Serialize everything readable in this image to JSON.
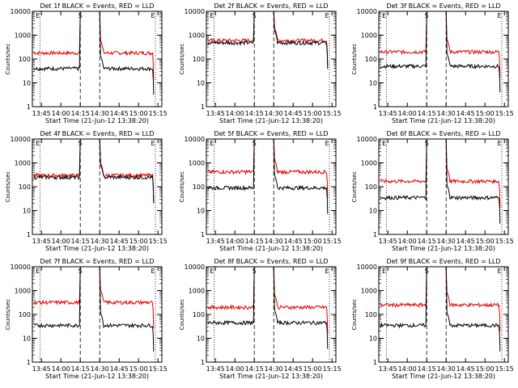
{
  "chart_data": [
    {
      "type": "line",
      "title": "Det 1f BLACK = Events, RED = LLD",
      "xlabel": "Start Time (21-Jun-12 13:38:20)",
      "ylabel": "Counts/sec",
      "black_level": 40,
      "red_level": 180,
      "spike": {
        "start": "14:15",
        "end": "14:30"
      },
      "tail_drop": true
    },
    {
      "type": "line",
      "title": "Det 2f BLACK = Events, RED = LLD",
      "xlabel": "Start Time (21-Jun-12 13:38:20)",
      "ylabel": "Counts/sec",
      "black_level": 480,
      "red_level": 600,
      "spike": {
        "start": "14:15",
        "end": "14:30"
      },
      "tail_drop": true
    },
    {
      "type": "line",
      "title": "Det 3f BLACK = Events, RED = LLD",
      "xlabel": "Start Time (21-Jun-12 13:38:20)",
      "ylabel": "Counts/sec",
      "black_level": 50,
      "red_level": 200,
      "spike": {
        "start": "14:15",
        "end": "14:30"
      },
      "tail_drop": true
    },
    {
      "type": "line",
      "title": "Det 4f BLACK = Events, RED = LLD",
      "xlabel": "Start Time (21-Jun-12 13:38:20)",
      "ylabel": "Counts/sec",
      "black_level": 250,
      "red_level": 300,
      "spike": {
        "start": "14:15",
        "end": "14:30"
      },
      "tail_drop": true
    },
    {
      "type": "line",
      "title": "Det 5f BLACK = Events, RED = LLD",
      "xlabel": "Start Time (21-Jun-12 13:38:20)",
      "ylabel": "Counts/sec",
      "black_level": 90,
      "red_level": 420,
      "spike": {
        "start": "14:15",
        "end": "14:30"
      },
      "tail_drop": true
    },
    {
      "type": "line",
      "title": "Det 6f BLACK = Events, RED = LLD",
      "xlabel": "Start Time (21-Jun-12 13:38:20)",
      "ylabel": "Counts/sec",
      "black_level": 35,
      "red_level": 170,
      "spike": {
        "start": "14:15",
        "end": "14:30"
      },
      "tail_drop": true
    },
    {
      "type": "line",
      "title": "Det 7f BLACK = Events, RED = LLD",
      "xlabel": "Start Time (21-Jun-12 13:38:20)",
      "ylabel": "Counts/sec",
      "black_level": 35,
      "red_level": 320,
      "spike": {
        "start": "14:15",
        "end": "14:30"
      },
      "tail_drop": true
    },
    {
      "type": "line",
      "title": "Det 8f BLACK = Events, RED = LLD",
      "xlabel": "Start Time (21-Jun-12 13:38:20)",
      "ylabel": "Counts/sec",
      "black_level": 45,
      "red_level": 200,
      "spike": {
        "start": "14:15",
        "end": "14:30"
      },
      "tail_drop": true
    },
    {
      "type": "line",
      "title": "Det 9f BLACK = Events, RED = LLD",
      "xlabel": "Start Time (21-Jun-12 13:38:20)",
      "ylabel": "Counts/sec",
      "black_level": 35,
      "red_level": 250,
      "spike": {
        "start": "14:15",
        "end": "14:30"
      },
      "tail_drop": true
    }
  ],
  "x_ticks": [
    "13:45",
    "14:00",
    "14:15",
    "14:30",
    "14:45",
    "15:00",
    "15:15"
  ],
  "y_ticks": [
    "1",
    "10",
    "100",
    "1000",
    "10000"
  ],
  "y_scale": "log",
  "ylim": [
    1,
    10000
  ],
  "markers": {
    "e": "E",
    "s": "S"
  },
  "colors": {
    "black": "#000000",
    "red": "#e00000"
  }
}
